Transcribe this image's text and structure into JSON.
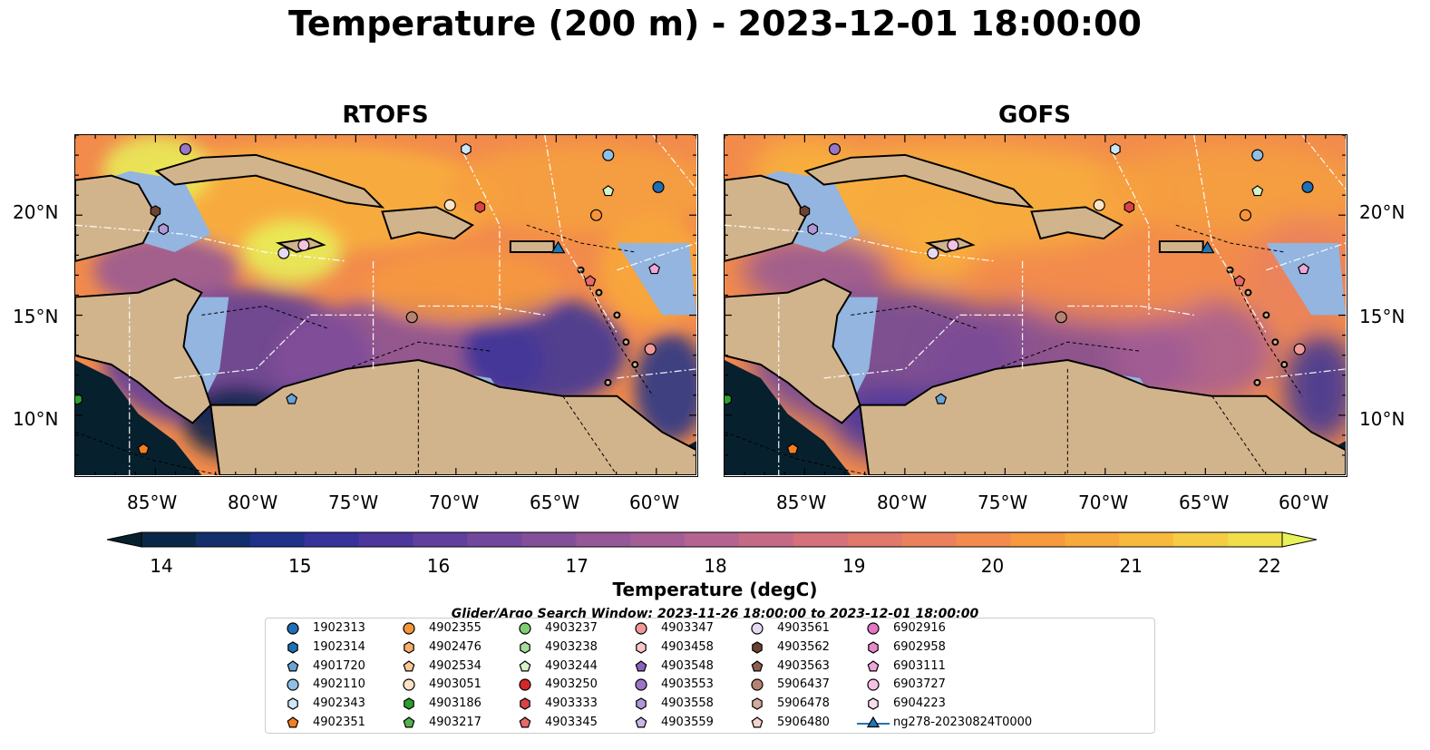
{
  "title": "Temperature (200 m) - 2023-12-01 18:00:00",
  "panels": [
    {
      "title": "RTOFS"
    },
    {
      "title": "GOFS"
    }
  ],
  "axes": {
    "x_ticks": [
      "85°W",
      "80°W",
      "75°W",
      "70°W",
      "65°W",
      "60°W"
    ],
    "y_ticks": [
      "20°N",
      "15°N",
      "10°N"
    ],
    "lon_range": [
      -89,
      -58
    ],
    "lat_range": [
      7,
      24
    ]
  },
  "colorbar": {
    "label": "Temperature (degC)",
    "ticks": [
      "14",
      "15",
      "16",
      "17",
      "18",
      "19",
      "20",
      "21",
      "22"
    ],
    "range": [
      14,
      22
    ],
    "colors": [
      "#07202e",
      "#0b2748",
      "#122e6b",
      "#20318a",
      "#37339a",
      "#4d379c",
      "#60409d",
      "#72489c",
      "#844f9a",
      "#955798",
      "#a55e95",
      "#b56490",
      "#c56a86",
      "#d4717a",
      "#e0786b",
      "#ea815d",
      "#f28b4c",
      "#f6993f",
      "#f8a93b",
      "#f8ba3c",
      "#f5cc44",
      "#f0de4b",
      "#e6f35a"
    ]
  },
  "search_window": "Glider/Argo Search Window: 2023-11-26 18:00:00 to 2023-12-01 18:00:00",
  "legend": [
    {
      "label": "1902313",
      "color": "#1f6fb4",
      "marker": "circle"
    },
    {
      "label": "1902314",
      "color": "#1f6fb4",
      "marker": "hexagon"
    },
    {
      "label": "4901720",
      "color": "#6aa3d4",
      "marker": "pentagon"
    },
    {
      "label": "4902110",
      "color": "#8ec0e8",
      "marker": "circle"
    },
    {
      "label": "4902343",
      "color": "#cfe6f7",
      "marker": "hexagon"
    },
    {
      "label": "4902351",
      "color": "#f57f20",
      "marker": "pentagon"
    },
    {
      "label": "4902355",
      "color": "#f7943a",
      "marker": "circle"
    },
    {
      "label": "4902476",
      "color": "#fbad67",
      "marker": "hexagon"
    },
    {
      "label": "4902534",
      "color": "#fcc793",
      "marker": "pentagon"
    },
    {
      "label": "4903051",
      "color": "#fde2c6",
      "marker": "circle"
    },
    {
      "label": "4903186",
      "color": "#2ca02c",
      "marker": "hexagon"
    },
    {
      "label": "4903217",
      "color": "#54b34e",
      "marker": "pentagon"
    },
    {
      "label": "4903237",
      "color": "#80cd72",
      "marker": "circle"
    },
    {
      "label": "4903238",
      "color": "#a7dc9d",
      "marker": "hexagon"
    },
    {
      "label": "4903244",
      "color": "#d4f5c8",
      "marker": "pentagon"
    },
    {
      "label": "4903250",
      "color": "#d62728",
      "marker": "circle"
    },
    {
      "label": "4903333",
      "color": "#dc4243",
      "marker": "hexagon"
    },
    {
      "label": "4903345",
      "color": "#e66a6a",
      "marker": "pentagon"
    },
    {
      "label": "4903347",
      "color": "#f09898",
      "marker": "circle"
    },
    {
      "label": "4903458",
      "color": "#f8c8c8",
      "marker": "hexagon"
    },
    {
      "label": "4903548",
      "color": "#8a63be",
      "marker": "pentagon"
    },
    {
      "label": "4903553",
      "color": "#9a76c8",
      "marker": "circle"
    },
    {
      "label": "4903558",
      "color": "#b197d8",
      "marker": "hexagon"
    },
    {
      "label": "4903559",
      "color": "#cab7e6",
      "marker": "pentagon"
    },
    {
      "label": "4903561",
      "color": "#e6d9f3",
      "marker": "circle"
    },
    {
      "label": "4903562",
      "color": "#6b4232",
      "marker": "hexagon"
    },
    {
      "label": "4903563",
      "color": "#8f5e4f",
      "marker": "pentagon"
    },
    {
      "label": "5906437",
      "color": "#b68373",
      "marker": "circle"
    },
    {
      "label": "5906478",
      "color": "#d5ab9d",
      "marker": "hexagon"
    },
    {
      "label": "5906480",
      "color": "#f0d5cc",
      "marker": "pentagon"
    },
    {
      "label": "6902916",
      "color": "#e377c2",
      "marker": "circle"
    },
    {
      "label": "6902958",
      "color": "#e888c9",
      "marker": "hexagon"
    },
    {
      "label": "6903111",
      "color": "#f0a6d8",
      "marker": "pentagon"
    },
    {
      "label": "6903727",
      "color": "#f5c2e4",
      "marker": "circle"
    },
    {
      "label": "6904223",
      "color": "#fadcef",
      "marker": "hexagon"
    },
    {
      "label": "ng278-20230824T0000",
      "color": "#1f77b4",
      "marker": "triangle-line"
    }
  ],
  "chart_data": {
    "type": "heatmap",
    "title": "Temperature (200 m) - 2023-12-01 18:00:00",
    "panels": [
      "RTOFS",
      "GOFS"
    ],
    "colorbar_label": "Temperature (degC)",
    "color_range": [
      14,
      22
    ],
    "lon_range": [
      -89,
      -58
    ],
    "lat_range": [
      7,
      24
    ],
    "observations": [
      {
        "id": "1902313",
        "lon": -59.9,
        "lat": 21.4
      },
      {
        "id": "4902110",
        "lon": -62.4,
        "lat": 23.0
      },
      {
        "id": "4902343",
        "lon": -69.5,
        "lat": 23.3
      },
      {
        "id": "4902355",
        "lon": -63.0,
        "lat": 20.0
      },
      {
        "id": "4903347",
        "lon": -60.3,
        "lat": 13.3
      },
      {
        "id": "4903345",
        "lon": -63.3,
        "lat": 16.7
      },
      {
        "id": "4903562",
        "lon": -85.0,
        "lat": 20.2
      },
      {
        "id": "4903558",
        "lon": -84.6,
        "lat": 19.3
      },
      {
        "id": "4903561",
        "lon": -78.6,
        "lat": 18.1
      },
      {
        "id": "5906437",
        "lon": -72.2,
        "lat": 14.9
      },
      {
        "id": "4901720",
        "lon": -78.2,
        "lat": 10.8
      },
      {
        "id": "4903051",
        "lon": -70.3,
        "lat": 20.5
      },
      {
        "id": "4903333",
        "lon": -68.8,
        "lat": 20.4
      },
      {
        "id": "6903111",
        "lon": -60.1,
        "lat": 17.3
      },
      {
        "id": "4902351",
        "lon": -85.6,
        "lat": 8.3
      },
      {
        "id": "4903186",
        "lon": -88.9,
        "lat": 10.8
      },
      {
        "id": "4903244",
        "lon": -62.4,
        "lat": 21.2
      },
      {
        "id": "4903553",
        "lon": -83.5,
        "lat": 23.3
      },
      {
        "id": "6903727",
        "lon": -77.6,
        "lat": 18.5
      },
      {
        "id": "ng278-20230824T0000",
        "lon": -64.9,
        "lat": 18.3
      }
    ]
  }
}
